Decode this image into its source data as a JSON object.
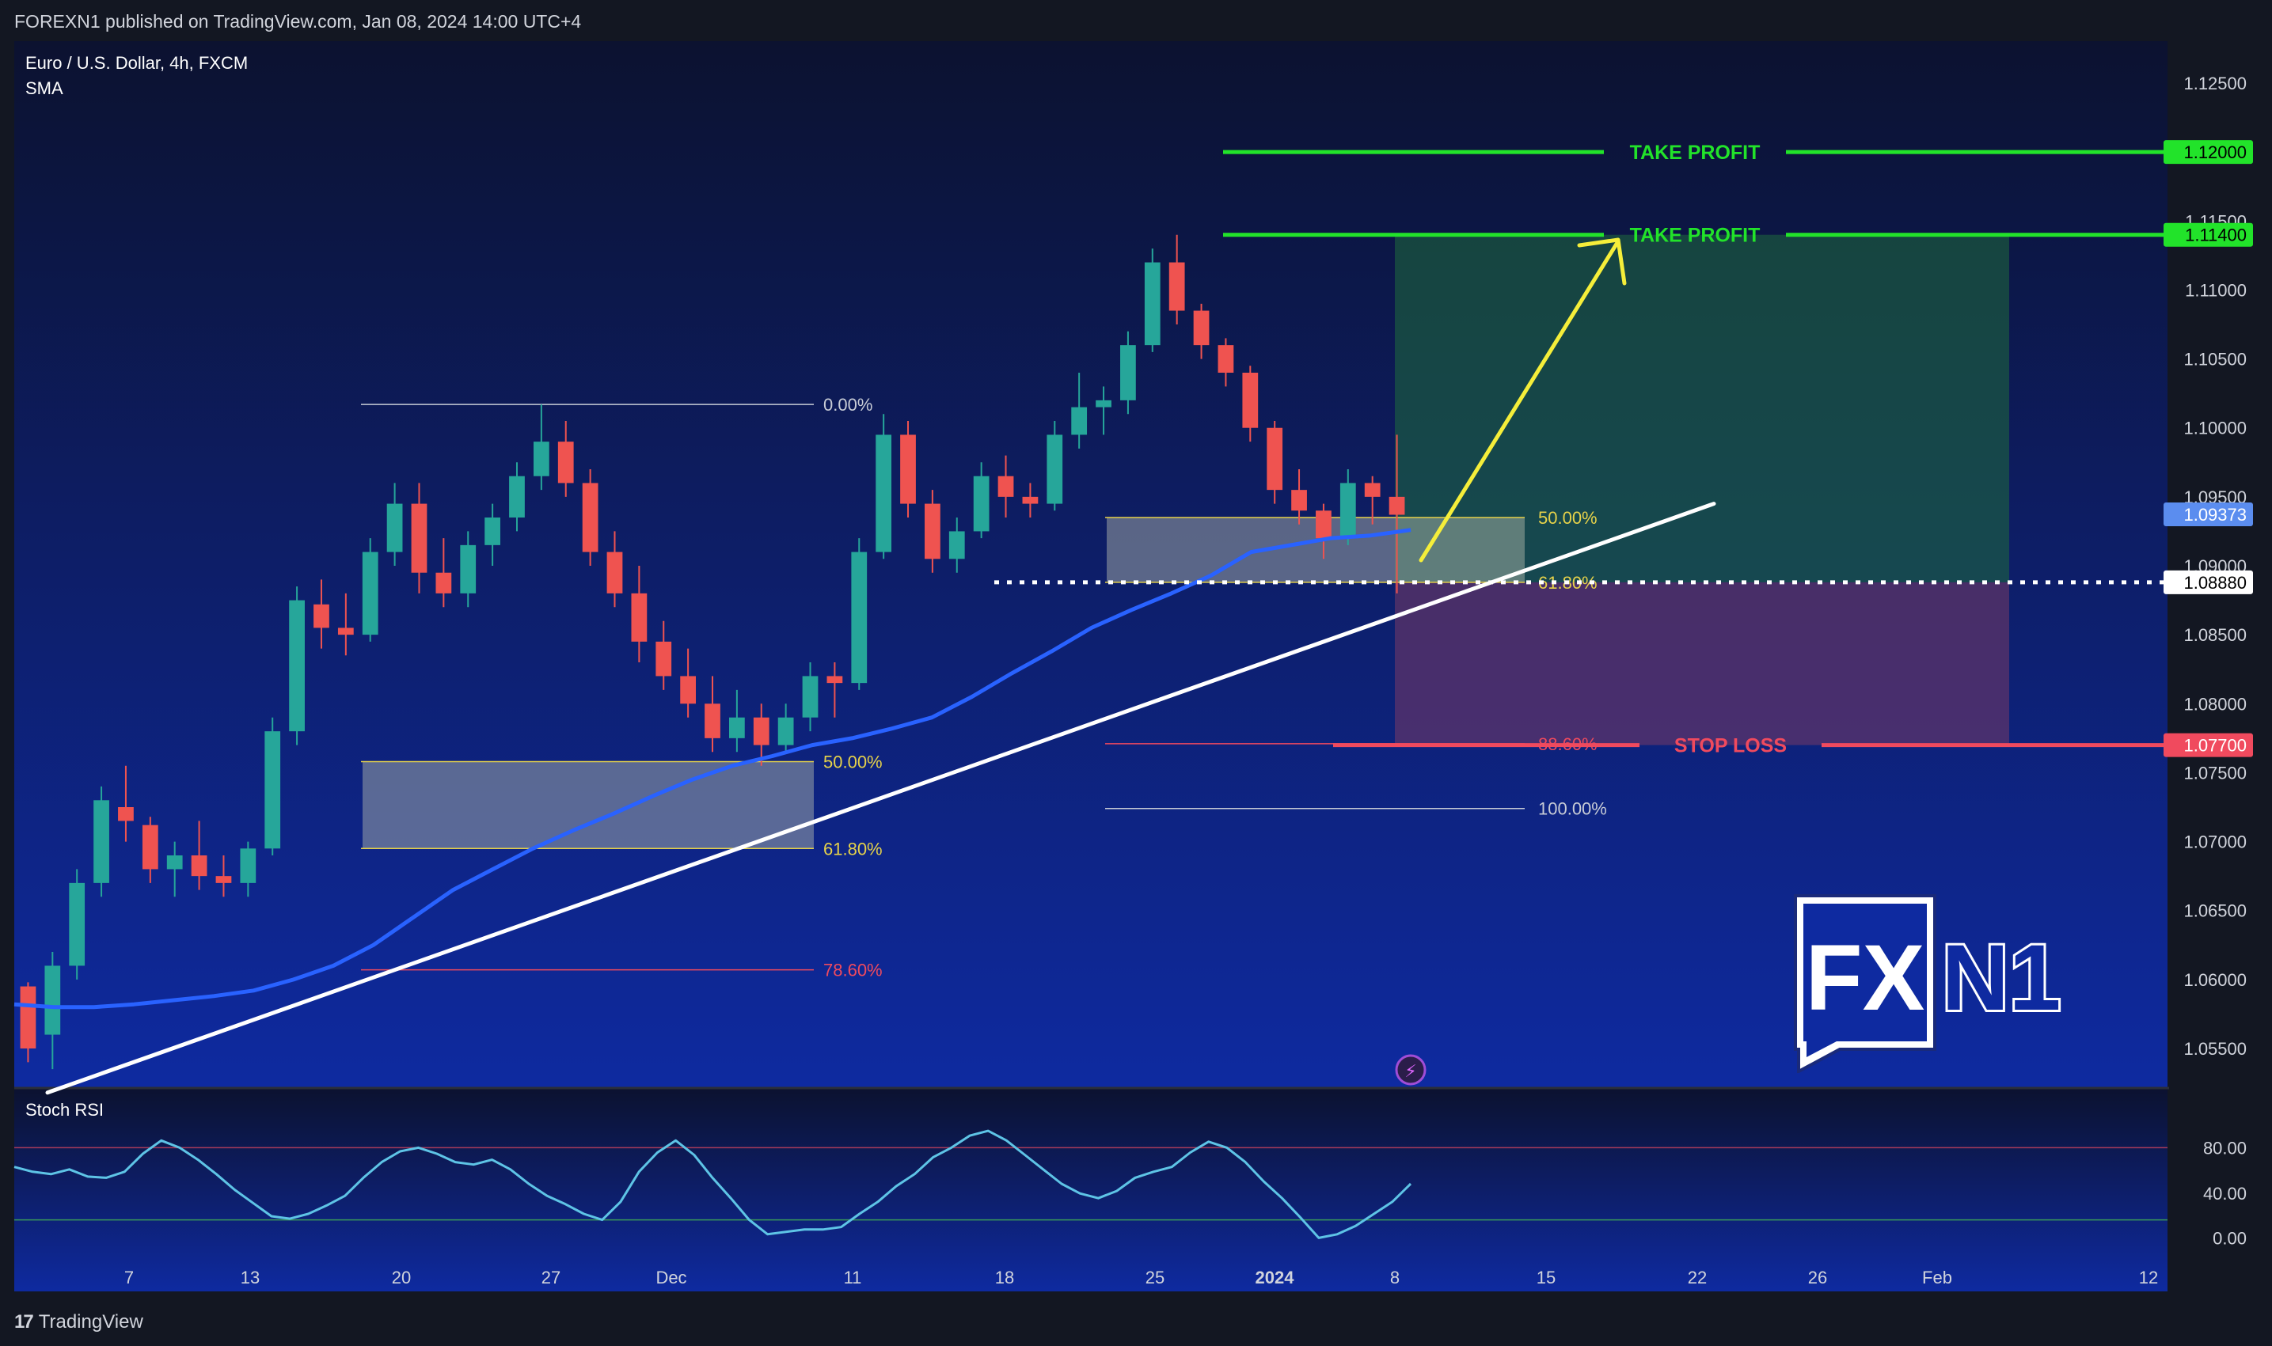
{
  "header": {
    "published": "FOREXN1 published on TradingView.com, Jan 08, 2024 14:00 UTC+4"
  },
  "symbol": {
    "name": "Euro / U.S. Dollar, 4h, FXCM",
    "indicator": "SMA"
  },
  "stoch": {
    "title": "Stoch RSI",
    "ticks": [
      "80.00",
      "40.00",
      "0.00"
    ]
  },
  "footer": {
    "brand": "TradingView"
  },
  "brand_logo": {
    "text_a": "FX",
    "text_b": "N1"
  },
  "colors": {
    "bg_top": "#0c1230",
    "bg_bottom": "#0e2aa0",
    "take_profit": "#22e32a",
    "stop_loss": "#f04a5e",
    "sma": "#2962ff",
    "trendline": "#ffffff",
    "arrow": "#f5ee3a",
    "candle_up": "#26a69a",
    "candle_down": "#ef5350",
    "stoch_line": "#5ec4e6"
  },
  "chart_data": {
    "type": "candlestick",
    "ylim": [
      1.0515,
      1.1275
    ],
    "price_ticks": [
      "1.12500",
      "1.11500",
      "1.11000",
      "1.10500",
      "1.10000",
      "1.09500",
      "1.09000",
      "1.08500",
      "1.08000",
      "1.07500",
      "1.07000",
      "1.06500",
      "1.06000",
      "1.05500"
    ],
    "x_ticks": [
      "7",
      "13",
      "20",
      "27",
      "Dec",
      "11",
      "18",
      "25",
      "2024",
      "8",
      "15",
      "22",
      "26",
      "Feb",
      "12"
    ],
    "price_labels": [
      {
        "label": "1.12000",
        "value": 1.12,
        "color": "#22e32a",
        "text_color": "#000000"
      },
      {
        "label": "1.11400",
        "value": 1.114,
        "color": "#22e32a",
        "text_color": "#000000"
      },
      {
        "label": "1.09373",
        "value": 1.09373,
        "color": "#5b8def",
        "text_color": "#ffffff"
      },
      {
        "label": "1.08880",
        "value": 1.0888,
        "color": "#ffffff",
        "text_color": "#000000"
      },
      {
        "label": "1.07700",
        "value": 1.077,
        "color": "#f04a5e",
        "text_color": "#ffffff"
      }
    ],
    "levels": [
      {
        "label": "TAKE PROFIT",
        "value": 1.12,
        "color": "#22e32a"
      },
      {
        "label": "TAKE PROFIT",
        "value": 1.114,
        "color": "#22e32a"
      },
      {
        "label": "STOP LOSS",
        "value": 1.077,
        "color": "#f04a5e"
      }
    ],
    "entry": 1.0888,
    "fib_left": {
      "levels": [
        {
          "label": "0.00%",
          "value": 1.1017
        },
        {
          "label": "50.00%",
          "value": 1.0758
        },
        {
          "label": "61.80%",
          "value": 1.0695
        },
        {
          "label": "78.60%",
          "value": 1.0607
        }
      ]
    },
    "fib_right": {
      "levels": [
        {
          "label": "50.00%",
          "value": 1.0935
        },
        {
          "label": "61.80%",
          "value": 1.0888
        },
        {
          "label": "88.60%",
          "value": 1.0771
        },
        {
          "label": "100.00%",
          "value": 1.0724
        }
      ]
    },
    "candles": [
      [
        1.0595,
        1.0598,
        1.054,
        1.055
      ],
      [
        1.056,
        1.062,
        1.0535,
        1.061
      ],
      [
        1.061,
        1.068,
        1.06,
        1.067
      ],
      [
        1.067,
        1.074,
        1.066,
        1.073
      ],
      [
        1.0725,
        1.0755,
        1.07,
        1.0715
      ],
      [
        1.0712,
        1.0718,
        1.067,
        1.068
      ],
      [
        1.068,
        1.07,
        1.066,
        1.069
      ],
      [
        1.069,
        1.0715,
        1.0665,
        1.0675
      ],
      [
        1.0675,
        1.069,
        1.066,
        1.067
      ],
      [
        1.067,
        1.07,
        1.066,
        1.0695
      ],
      [
        1.0695,
        1.079,
        1.069,
        1.078
      ],
      [
        1.078,
        1.0885,
        1.077,
        1.0875
      ],
      [
        1.0872,
        1.089,
        1.084,
        1.0855
      ],
      [
        1.0855,
        1.088,
        1.0835,
        1.085
      ],
      [
        1.085,
        1.092,
        1.0845,
        1.091
      ],
      [
        1.091,
        1.096,
        1.09,
        1.0945
      ],
      [
        1.0945,
        1.096,
        1.088,
        1.0895
      ],
      [
        1.0895,
        1.092,
        1.087,
        1.088
      ],
      [
        1.088,
        1.0925,
        1.087,
        1.0915
      ],
      [
        1.0915,
        1.0945,
        1.09,
        1.0935
      ],
      [
        1.0935,
        1.0975,
        1.0925,
        1.0965
      ],
      [
        1.0965,
        1.1017,
        1.0955,
        1.099
      ],
      [
        1.099,
        1.1005,
        1.095,
        1.096
      ],
      [
        1.096,
        1.097,
        1.09,
        1.091
      ],
      [
        1.091,
        1.0925,
        1.087,
        1.088
      ],
      [
        1.088,
        1.09,
        1.083,
        1.0845
      ],
      [
        1.0845,
        1.086,
        1.081,
        1.082
      ],
      [
        1.082,
        1.084,
        1.079,
        1.08
      ],
      [
        1.08,
        1.082,
        1.0765,
        1.0775
      ],
      [
        1.0775,
        1.081,
        1.0765,
        1.079
      ],
      [
        1.079,
        1.08,
        1.0755,
        1.077
      ],
      [
        1.077,
        1.08,
        1.0765,
        1.079
      ],
      [
        1.079,
        1.083,
        1.078,
        1.082
      ],
      [
        1.082,
        1.083,
        1.079,
        1.0815
      ],
      [
        1.0815,
        1.092,
        1.081,
        1.091
      ],
      [
        1.091,
        1.101,
        1.0905,
        1.0995
      ],
      [
        1.0995,
        1.1005,
        1.0935,
        1.0945
      ],
      [
        1.0945,
        1.0955,
        1.0895,
        1.0905
      ],
      [
        1.0905,
        1.0935,
        1.0895,
        1.0925
      ],
      [
        1.0925,
        1.0975,
        1.092,
        1.0965
      ],
      [
        1.0965,
        1.098,
        1.0935,
        1.095
      ],
      [
        1.095,
        1.096,
        1.0935,
        1.0945
      ],
      [
        1.0945,
        1.1005,
        1.094,
        1.0995
      ],
      [
        1.0995,
        1.104,
        1.0985,
        1.1015
      ],
      [
        1.1015,
        1.103,
        1.0995,
        1.102
      ],
      [
        1.102,
        1.107,
        1.101,
        1.106
      ],
      [
        1.106,
        1.113,
        1.1055,
        1.112
      ],
      [
        1.112,
        1.114,
        1.1075,
        1.1085
      ],
      [
        1.1085,
        1.109,
        1.105,
        1.106
      ],
      [
        1.106,
        1.1065,
        1.103,
        1.104
      ],
      [
        1.104,
        1.1045,
        1.099,
        1.1
      ],
      [
        1.1,
        1.1005,
        1.0945,
        1.0955
      ],
      [
        1.0955,
        1.097,
        1.093,
        1.094
      ],
      [
        1.094,
        1.0945,
        1.0905,
        1.092
      ],
      [
        1.092,
        1.097,
        1.0915,
        1.096
      ],
      [
        1.096,
        1.0965,
        1.093,
        1.095
      ],
      [
        1.095,
        1.0995,
        1.088,
        1.0937
      ]
    ],
    "sma": [
      1.0582,
      1.058,
      1.058,
      1.0582,
      1.0585,
      1.0588,
      1.0592,
      1.06,
      1.061,
      1.0625,
      1.0645,
      1.0665,
      1.068,
      1.0695,
      1.0708,
      1.072,
      1.0733,
      1.0745,
      1.0755,
      1.0762,
      1.077,
      1.0775,
      1.0782,
      1.079,
      1.0805,
      1.0822,
      1.0838,
      1.0855,
      1.0868,
      1.088,
      1.0893,
      1.091,
      1.0915,
      1.092,
      1.0922,
      1.0926
    ],
    "sma_dates": [
      0,
      1,
      2,
      3,
      4,
      5,
      6,
      7,
      8,
      9,
      10,
      11,
      12,
      13,
      14,
      15,
      16,
      17,
      18,
      19,
      20,
      21,
      22,
      23,
      24,
      25,
      26,
      27,
      28,
      29,
      30,
      31,
      32,
      33,
      34,
      35
    ],
    "trendline": [
      [
        0,
        1.0518
      ],
      [
        1,
        1.0945
      ]
    ],
    "stoch_rsi": [
      64,
      60,
      58,
      62,
      56,
      55,
      60,
      75,
      86,
      80,
      70,
      58,
      45,
      34,
      23,
      21,
      25,
      32,
      40,
      55,
      68,
      77,
      80,
      75,
      68,
      66,
      70,
      62,
      50,
      40,
      33,
      25,
      20,
      35,
      60,
      76,
      86,
      74,
      55,
      38,
      20,
      8,
      10,
      12,
      12,
      14,
      25,
      35,
      48,
      58,
      72,
      80,
      90,
      94,
      86,
      74,
      62,
      50,
      42,
      38,
      44,
      55,
      60,
      64,
      76,
      85,
      80,
      68,
      52,
      38,
      22,
      5,
      8,
      15,
      25,
      35,
      50
    ]
  }
}
